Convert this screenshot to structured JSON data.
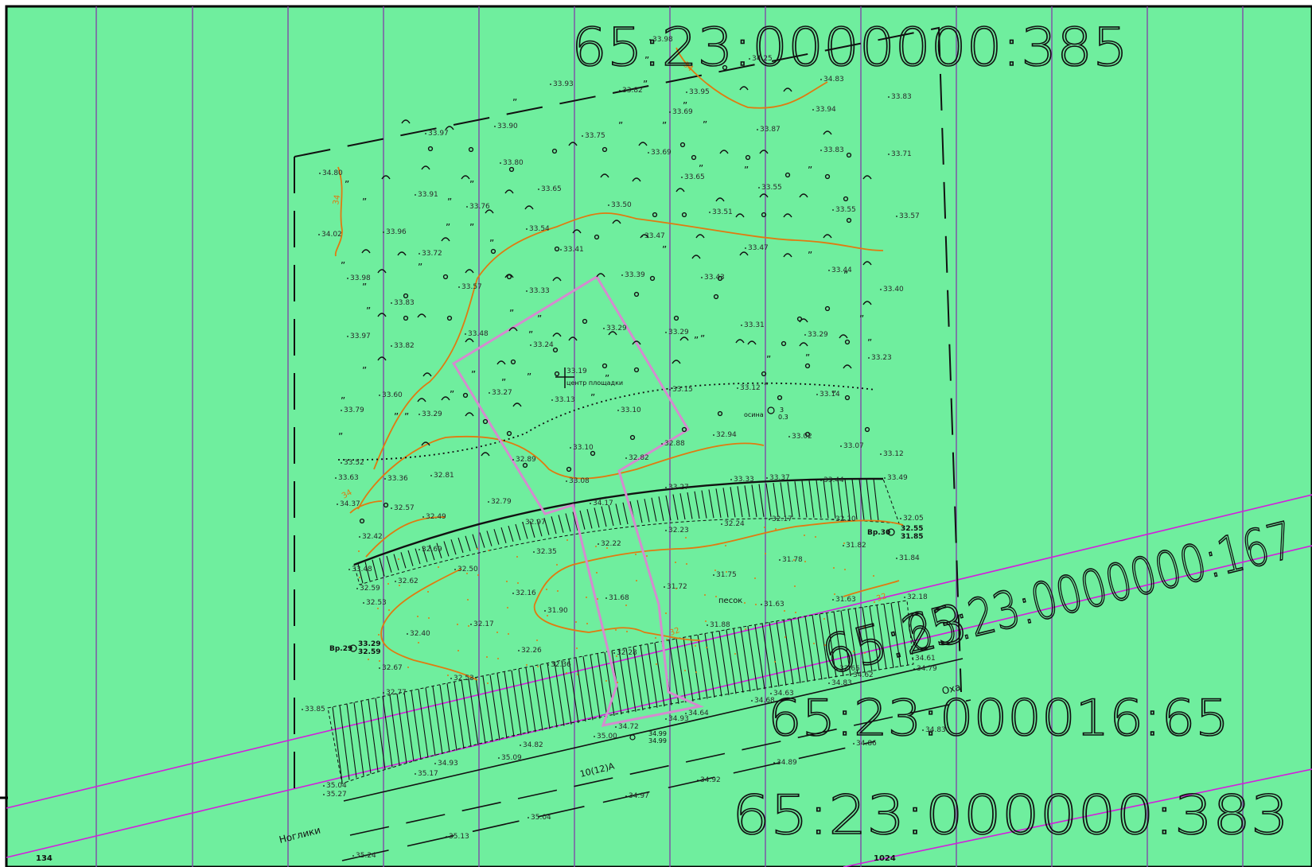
{
  "parcels": {
    "top": "65:23:0000000:385",
    "right_diag": "65:23:0000000:167",
    "mid_right": "65:23:000016:65",
    "bottom": "65:23:000000:383",
    "mid_overlay": "65:23"
  },
  "labels": {
    "center": "центр площадки",
    "sand": "песок",
    "river": "Оха",
    "road": "10(12)А",
    "town": "Ноглики",
    "km_left": "134",
    "km_right": "1024",
    "well_29": "Вр.29",
    "well_29_vals": [
      "33.29",
      "32.59"
    ],
    "well_30": "Вр.30",
    "well_30_vals": [
      "32.55",
      "31.85"
    ],
    "pine": "осина",
    "pine_vals": [
      "3",
      "0.3"
    ],
    "spot_vals": [
      "34.99",
      "34.99"
    ],
    "ref_val": "33.19"
  },
  "elevations": [
    [
      "33.98",
      820,
      52
    ],
    [
      "34.25",
      945,
      76
    ],
    [
      "34.83",
      1035,
      102
    ],
    [
      "33.93",
      695,
      108
    ],
    [
      "33.82",
      782,
      116
    ],
    [
      "33.95",
      866,
      118
    ],
    [
      "33.83",
      1120,
      124
    ],
    [
      "33.69",
      845,
      143
    ],
    [
      "33.94",
      1025,
      140
    ],
    [
      "33.97",
      538,
      170
    ],
    [
      "33.90",
      625,
      161
    ],
    [
      "33.75",
      735,
      173
    ],
    [
      "33.87",
      955,
      165
    ],
    [
      "33.83",
      1035,
      191
    ],
    [
      "33.71",
      1120,
      196
    ],
    [
      "33.69",
      818,
      194
    ],
    [
      "33.80",
      632,
      207
    ],
    [
      "34.80",
      405,
      220
    ],
    [
      "33.91",
      525,
      247
    ],
    [
      "33.76",
      590,
      262
    ],
    [
      "33.65",
      680,
      240
    ],
    [
      "33.65",
      860,
      225
    ],
    [
      "33.55",
      957,
      238
    ],
    [
      "33.50",
      768,
      260
    ],
    [
      "33.51",
      895,
      269
    ],
    [
      "33.55",
      1050,
      266
    ],
    [
      "33.57",
      1130,
      274
    ],
    [
      "34.02",
      404,
      297
    ],
    [
      "33.96",
      485,
      294
    ],
    [
      "33.72",
      530,
      321
    ],
    [
      "33.54",
      665,
      290
    ],
    [
      "33.41",
      708,
      316
    ],
    [
      "33.47",
      810,
      299
    ],
    [
      "33.47",
      940,
      314
    ],
    [
      "33.44",
      1045,
      342
    ],
    [
      "33.40",
      1110,
      366
    ],
    [
      "33.98",
      440,
      352
    ],
    [
      "33.57",
      580,
      363
    ],
    [
      "33.33",
      665,
      368
    ],
    [
      "33.39",
      785,
      348
    ],
    [
      "33.43",
      885,
      351
    ],
    [
      "33.83",
      495,
      383
    ],
    [
      "33.31",
      935,
      411
    ],
    [
      "33.97",
      440,
      425
    ],
    [
      "33.82",
      495,
      437
    ],
    [
      "33.48",
      588,
      422
    ],
    [
      "33.29",
      762,
      415
    ],
    [
      "33.29",
      840,
      420
    ],
    [
      "33.29",
      1015,
      423
    ],
    [
      "33.23",
      1095,
      452
    ],
    [
      "33.24",
      670,
      436
    ],
    [
      "33.27",
      618,
      496
    ],
    [
      "33.13",
      697,
      505
    ],
    [
      "33.10",
      780,
      518
    ],
    [
      "33.15",
      845,
      492
    ],
    [
      "33.12",
      930,
      490
    ],
    [
      "33.14",
      1030,
      498
    ],
    [
      "33.60",
      480,
      499
    ],
    [
      "33.79",
      432,
      518
    ],
    [
      "33.29",
      530,
      523
    ],
    [
      "32.94",
      900,
      549
    ],
    [
      "33.02",
      995,
      551
    ],
    [
      "33.07",
      1060,
      563
    ],
    [
      "33.12",
      1110,
      573
    ],
    [
      "33.52",
      432,
      584
    ],
    [
      "33.63",
      425,
      603
    ],
    [
      "33.36",
      487,
      604
    ],
    [
      "32.81",
      545,
      600
    ],
    [
      "32.89",
      648,
      580
    ],
    [
      "33.10",
      720,
      565
    ],
    [
      "32.82",
      790,
      578
    ],
    [
      "32.88",
      835,
      560
    ],
    [
      "33.08",
      715,
      607
    ],
    [
      "33.27",
      840,
      615
    ],
    [
      "33.33",
      922,
      605
    ],
    [
      "33.37",
      967,
      603
    ],
    [
      "33.44",
      1035,
      606
    ],
    [
      "33.49",
      1115,
      603
    ],
    [
      "34.37",
      427,
      636
    ],
    [
      "32.57",
      495,
      641
    ],
    [
      "32.79",
      617,
      633
    ],
    [
      "32.97",
      660,
      659
    ],
    [
      "34.17",
      745,
      635
    ],
    [
      "32.49",
      535,
      652
    ],
    [
      "32.42",
      455,
      677
    ],
    [
      "32.69",
      530,
      693
    ],
    [
      "32.23",
      840,
      669
    ],
    [
      "32.24",
      910,
      661
    ],
    [
      "32.17",
      970,
      655
    ],
    [
      "32.10",
      1050,
      655
    ],
    [
      "32.05",
      1135,
      654
    ],
    [
      "32.35",
      674,
      696
    ],
    [
      "32.22",
      755,
      686
    ],
    [
      "31.82",
      1063,
      688
    ],
    [
      "31.84",
      1130,
      704
    ],
    [
      "31.78",
      983,
      706
    ],
    [
      "33.48",
      442,
      718
    ],
    [
      "32.59",
      452,
      742
    ],
    [
      "32.62",
      500,
      733
    ],
    [
      "32.50",
      575,
      718
    ],
    [
      "31.75",
      900,
      725
    ],
    [
      "32.53",
      460,
      760
    ],
    [
      "32.16",
      648,
      748
    ],
    [
      "31.68",
      765,
      754
    ],
    [
      "31.72",
      838,
      740
    ],
    [
      "31.63",
      960,
      762
    ],
    [
      "31.63",
      1050,
      756
    ],
    [
      "32.18",
      1140,
      753
    ],
    [
      "31.90",
      688,
      770
    ],
    [
      "31.88",
      892,
      788
    ],
    [
      "32.17",
      595,
      787
    ],
    [
      "32.40",
      515,
      799
    ],
    [
      "32.26",
      655,
      820
    ],
    [
      "32.28",
      775,
      823
    ],
    [
      "32.67",
      480,
      842
    ],
    [
      "32.36",
      692,
      838
    ],
    [
      "32.53",
      570,
      855
    ],
    [
      "32.77",
      485,
      873
    ],
    [
      "32.65",
      1055,
      843
    ],
    [
      "34.62",
      1072,
      851
    ],
    [
      "34.79",
      1152,
      843
    ],
    [
      "34.83",
      1045,
      861
    ],
    [
      "34.63",
      972,
      874
    ],
    [
      "34.68",
      948,
      883
    ],
    [
      "34.61",
      1150,
      830
    ],
    [
      "33.85",
      383,
      894
    ],
    [
      "34.64",
      865,
      899
    ],
    [
      "34.93",
      840,
      906
    ],
    [
      "34.72",
      777,
      916
    ],
    [
      "35.00",
      750,
      928
    ],
    [
      "34.82",
      657,
      939
    ],
    [
      "35.09",
      630,
      955
    ],
    [
      "34.86",
      1076,
      937
    ],
    [
      "34.83",
      1163,
      920
    ],
    [
      "34.93",
      550,
      962
    ],
    [
      "35.17",
      525,
      975
    ],
    [
      "34.89",
      976,
      961
    ],
    [
      "35.04",
      410,
      990
    ],
    [
      "35.27",
      410,
      1001
    ],
    [
      "34.92",
      880,
      983
    ],
    [
      "34.97",
      790,
      1003
    ],
    [
      "35.04",
      667,
      1030
    ],
    [
      "35.13",
      564,
      1054
    ],
    [
      "35.24",
      447,
      1078
    ]
  ]
}
